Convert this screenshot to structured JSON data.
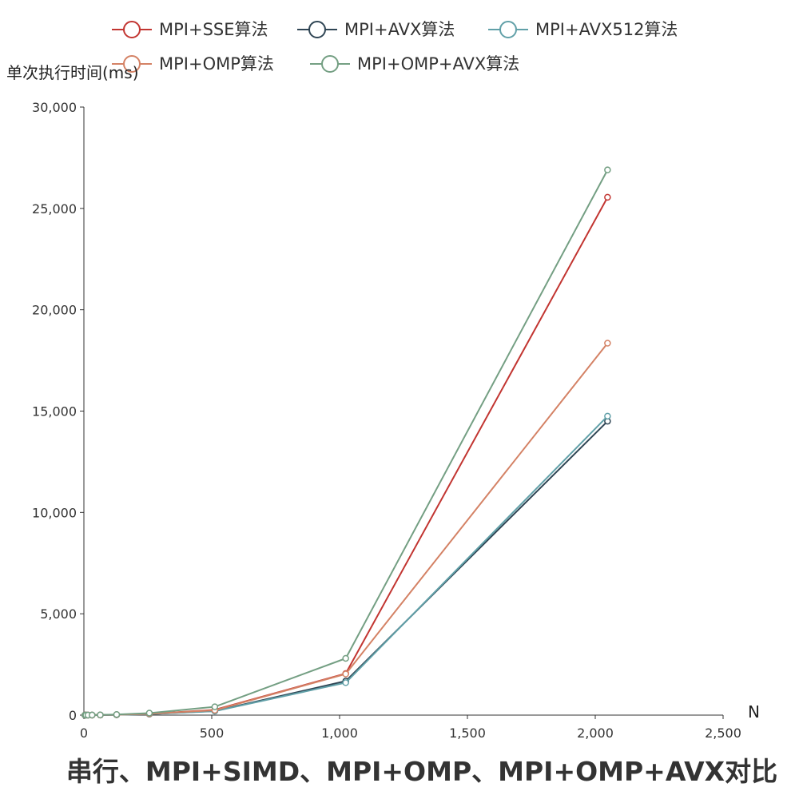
{
  "chart_data": {
    "type": "line",
    "title": "串行、MPI+SIMD、MPI+OMP、MPI+OMP+AVX对比",
    "xlabel": "N",
    "ylabel": "单次执行时间(ms)",
    "xlim": [
      0,
      2500
    ],
    "ylim": [
      0,
      30000
    ],
    "x_ticks": [
      0,
      500,
      1000,
      1500,
      2000,
      2500
    ],
    "y_ticks": [
      0,
      5000,
      10000,
      15000,
      20000,
      25000,
      30000
    ],
    "x_tick_labels": [
      "0",
      "500",
      "1,000",
      "1,500",
      "2,000",
      "2,500"
    ],
    "y_tick_labels": [
      "0",
      "5,000",
      "10,000",
      "15,000",
      "20,000",
      "25,000",
      "30,000"
    ],
    "grid": false,
    "legend_position": "top",
    "x": [
      4,
      8,
      16,
      32,
      64,
      128,
      256,
      512,
      1024,
      2048
    ],
    "series": [
      {
        "name": "MPI+SSE算法",
        "color": "#c23531",
        "values": [
          0.1,
          0.2,
          0.5,
          2,
          6,
          18,
          60,
          260,
          2050,
          25550
        ]
      },
      {
        "name": "MPI+AVX算法",
        "color": "#2f4554",
        "values": [
          0.1,
          0.2,
          0.4,
          1.5,
          5,
          15,
          50,
          200,
          1680,
          14500
        ]
      },
      {
        "name": "MPI+AVX512算法",
        "color": "#61a0a8",
        "values": [
          0.1,
          0.2,
          0.4,
          1.5,
          5,
          14,
          48,
          195,
          1600,
          14750
        ]
      },
      {
        "name": "MPI+OMP算法",
        "color": "#d48265",
        "values": [
          0.1,
          0.3,
          0.6,
          2,
          7,
          20,
          65,
          240,
          2030,
          18350
        ]
      },
      {
        "name": "MPI+OMP+AVX算法",
        "color": "#749f83",
        "values": [
          0.1,
          0.3,
          0.8,
          3,
          10,
          30,
          100,
          410,
          2800,
          26900
        ]
      }
    ]
  }
}
